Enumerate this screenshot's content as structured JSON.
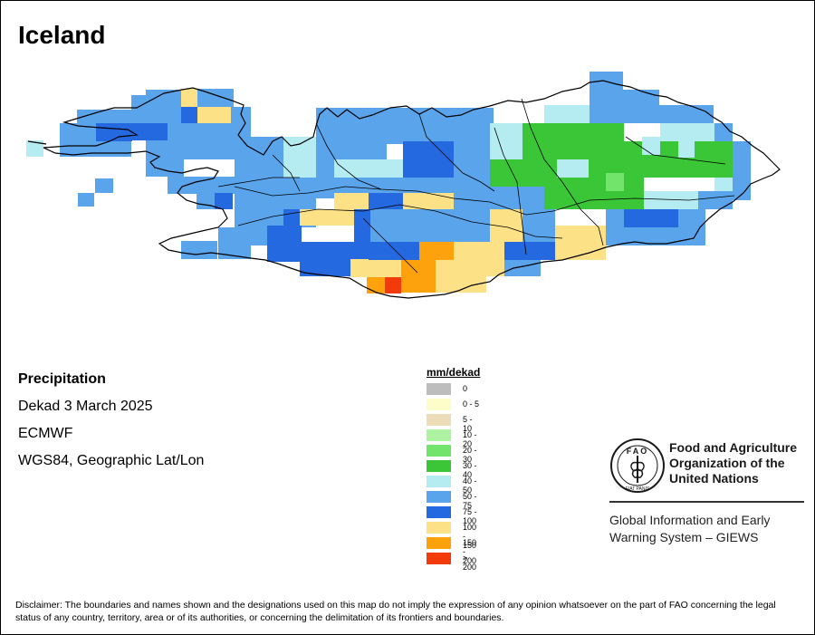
{
  "map": {
    "title": "Iceland",
    "variable": "Precipitation",
    "period": "Dekad 3 March 2025",
    "source": "ECMWF",
    "projection": "WGS84, Geographic Lat/Lon"
  },
  "legend": {
    "title": "mm/dekad",
    "classes": [
      {
        "label": "0",
        "color": "#bdbdbd"
      },
      {
        "label": "0 - 5",
        "color": "#fdfdc9"
      },
      {
        "label": "5 - 10",
        "color": "#ecdcb7"
      },
      {
        "label": "10 - 20",
        "color": "#aef3a2"
      },
      {
        "label": "20 - 30",
        "color": "#72e46b"
      },
      {
        "label": "30 - 40",
        "color": "#3ac636"
      },
      {
        "label": "40 - 50",
        "color": "#b4ecf2"
      },
      {
        "label": "50 - 75",
        "color": "#5aa4ec"
      },
      {
        "label": "75 - 100",
        "color": "#2469e0"
      },
      {
        "label": "100 - 150",
        "color": "#fde187"
      },
      {
        "label": "150 - 200",
        "color": "#fda20d"
      },
      {
        "label": "> 200",
        "color": "#f23a0a"
      }
    ]
  },
  "organization": {
    "logo_text": "FAO",
    "logo_motto": "FIAT PANIS",
    "name_line1": "Food and Agriculture",
    "name_line2": "Organization of the",
    "name_line3": "United Nations",
    "system_line1": "Global Information and Early",
    "system_line2": "Warning System – GIEWS"
  },
  "disclaimer": "Disclaimer: The boundaries and names shown and the designations used on this map do not imply the expression of any opinion whatsoever on the part of FAO concerning the legal status of any country, territory, area or of its authorities, or concerning the delimitation of its frontiers and boundaries."
}
